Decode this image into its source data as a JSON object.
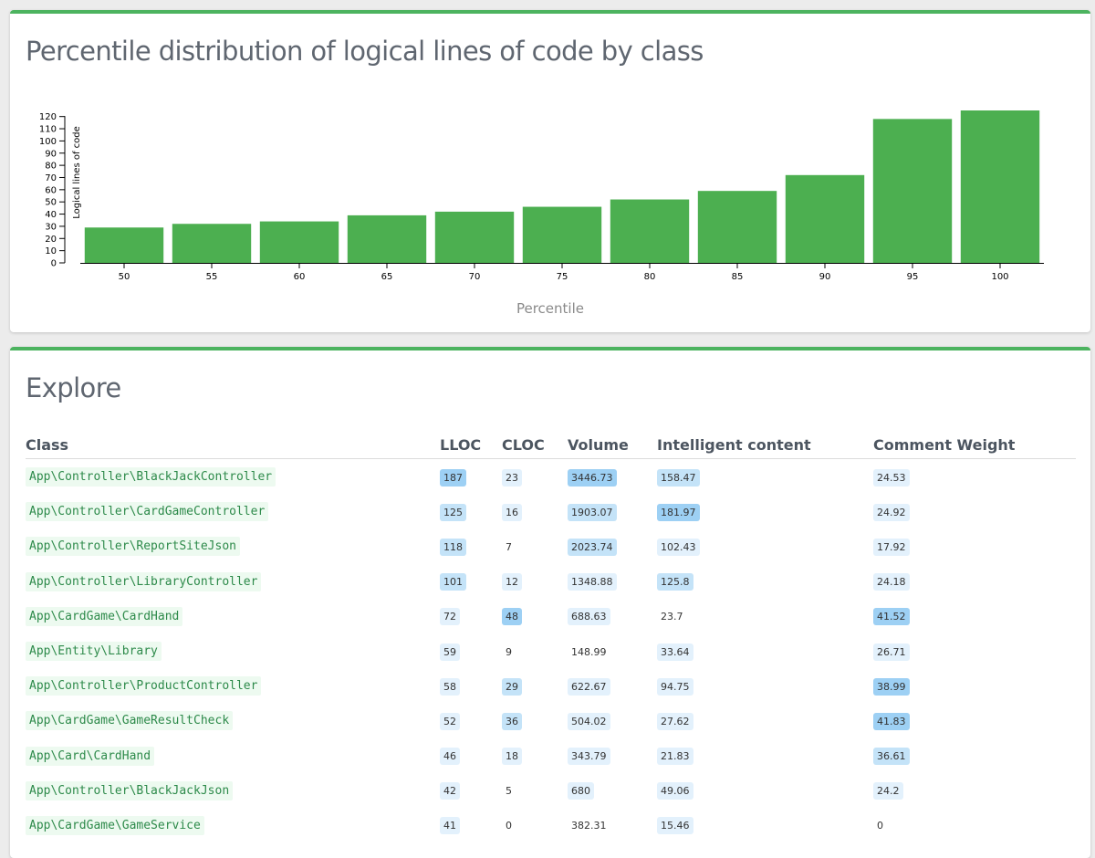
{
  "colors": {
    "accent": "#4cb35f",
    "bar": "#4caf50"
  },
  "chart_card": {
    "title": "Percentile distribution of logical lines of code by class"
  },
  "chart_data": {
    "type": "bar",
    "categories": [
      "50",
      "55",
      "60",
      "65",
      "70",
      "75",
      "80",
      "85",
      "90",
      "95",
      "100"
    ],
    "values": [
      29,
      32,
      34,
      39,
      42,
      46,
      52,
      59,
      72,
      118,
      125
    ],
    "title": "Percentile distribution of logical lines of code by class",
    "xlabel": "Percentile",
    "ylabel": "Logical lines of code",
    "ylim": [
      0,
      125
    ],
    "yticks": [
      0,
      10,
      20,
      30,
      40,
      50,
      60,
      70,
      80,
      90,
      100,
      110,
      120
    ],
    "grid": false,
    "legend": "none"
  },
  "explore": {
    "title": "Explore",
    "columns": [
      "Class",
      "LLOC",
      "CLOC",
      "Volume",
      "Intelligent content",
      "Comment Weight"
    ],
    "rows": [
      {
        "cls": "App\\Controller\\BlackJackController",
        "lloc": "187",
        "cloc": "23",
        "volume": "3446.73",
        "ic": "158.47",
        "cw": "24.53",
        "levels": [
          3,
          1,
          3,
          2,
          1
        ]
      },
      {
        "cls": "App\\Controller\\CardGameController",
        "lloc": "125",
        "cloc": "16",
        "volume": "1903.07",
        "ic": "181.97",
        "cw": "24.92",
        "levels": [
          2,
          1,
          2,
          3,
          1
        ]
      },
      {
        "cls": "App\\Controller\\ReportSiteJson",
        "lloc": "118",
        "cloc": "7",
        "volume": "2023.74",
        "ic": "102.43",
        "cw": "17.92",
        "levels": [
          2,
          0,
          2,
          1,
          1
        ]
      },
      {
        "cls": "App\\Controller\\LibraryController",
        "lloc": "101",
        "cloc": "12",
        "volume": "1348.88",
        "ic": "125.8",
        "cw": "24.18",
        "levels": [
          2,
          1,
          1,
          2,
          1
        ]
      },
      {
        "cls": "App\\CardGame\\CardHand",
        "lloc": "72",
        "cloc": "48",
        "volume": "688.63",
        "ic": "23.7",
        "cw": "41.52",
        "levels": [
          1,
          3,
          1,
          0,
          3
        ]
      },
      {
        "cls": "App\\Entity\\Library",
        "lloc": "59",
        "cloc": "9",
        "volume": "148.99",
        "ic": "33.64",
        "cw": "26.71",
        "levels": [
          1,
          0,
          0,
          1,
          1
        ]
      },
      {
        "cls": "App\\Controller\\ProductController",
        "lloc": "58",
        "cloc": "29",
        "volume": "622.67",
        "ic": "94.75",
        "cw": "38.99",
        "levels": [
          1,
          2,
          1,
          1,
          3
        ]
      },
      {
        "cls": "App\\CardGame\\GameResultCheck",
        "lloc": "52",
        "cloc": "36",
        "volume": "504.02",
        "ic": "27.62",
        "cw": "41.83",
        "levels": [
          1,
          2,
          1,
          1,
          3
        ]
      },
      {
        "cls": "App\\Card\\CardHand",
        "lloc": "46",
        "cloc": "18",
        "volume": "343.79",
        "ic": "21.83",
        "cw": "36.61",
        "levels": [
          1,
          1,
          1,
          1,
          2
        ]
      },
      {
        "cls": "App\\Controller\\BlackJackJson",
        "lloc": "42",
        "cloc": "5",
        "volume": "680",
        "ic": "49.06",
        "cw": "24.2",
        "levels": [
          1,
          0,
          1,
          1,
          1
        ]
      },
      {
        "cls": "App\\CardGame\\GameService",
        "lloc": "41",
        "cloc": "0",
        "volume": "382.31",
        "ic": "15.46",
        "cw": "0",
        "levels": [
          1,
          0,
          0,
          1,
          0
        ]
      }
    ]
  }
}
